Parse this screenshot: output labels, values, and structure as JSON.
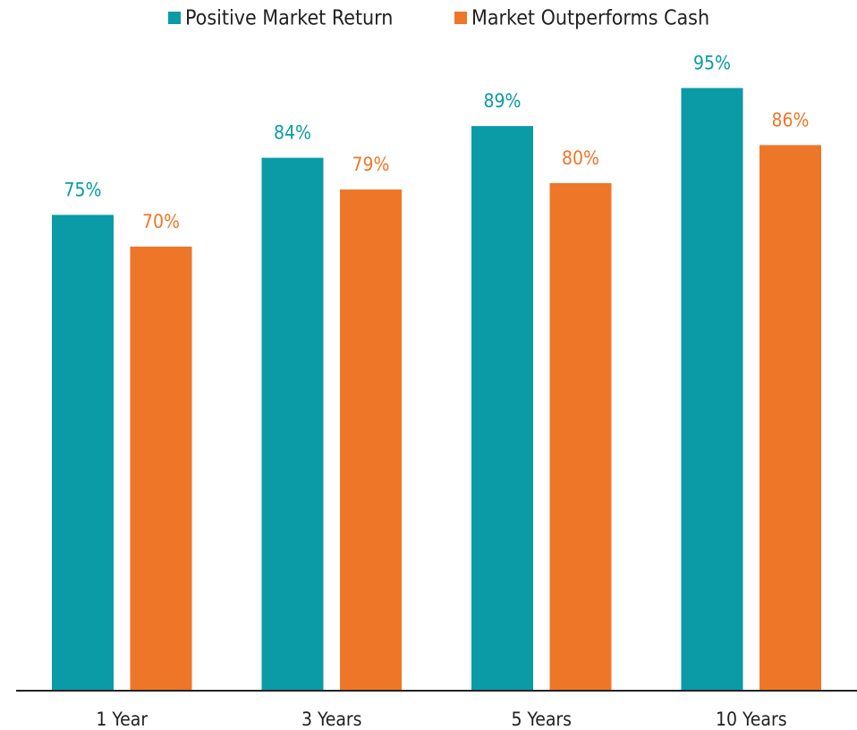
{
  "chart_data": {
    "type": "bar",
    "categories": [
      "1 Year",
      "3 Years",
      "5 Years",
      "10 Years"
    ],
    "series": [
      {
        "name": "Positive Market Return",
        "color": "#0a9ba6",
        "values": [
          75,
          84,
          89,
          95
        ],
        "value_labels": [
          "75%",
          "84%",
          "89%",
          "95%"
        ]
      },
      {
        "name": "Market Outperforms Cash",
        "color": "#ee7628",
        "values": [
          70,
          79,
          80,
          86
        ],
        "value_labels": [
          "70%",
          "79%",
          "80%",
          "86%"
        ]
      }
    ],
    "legend": "top"
  }
}
